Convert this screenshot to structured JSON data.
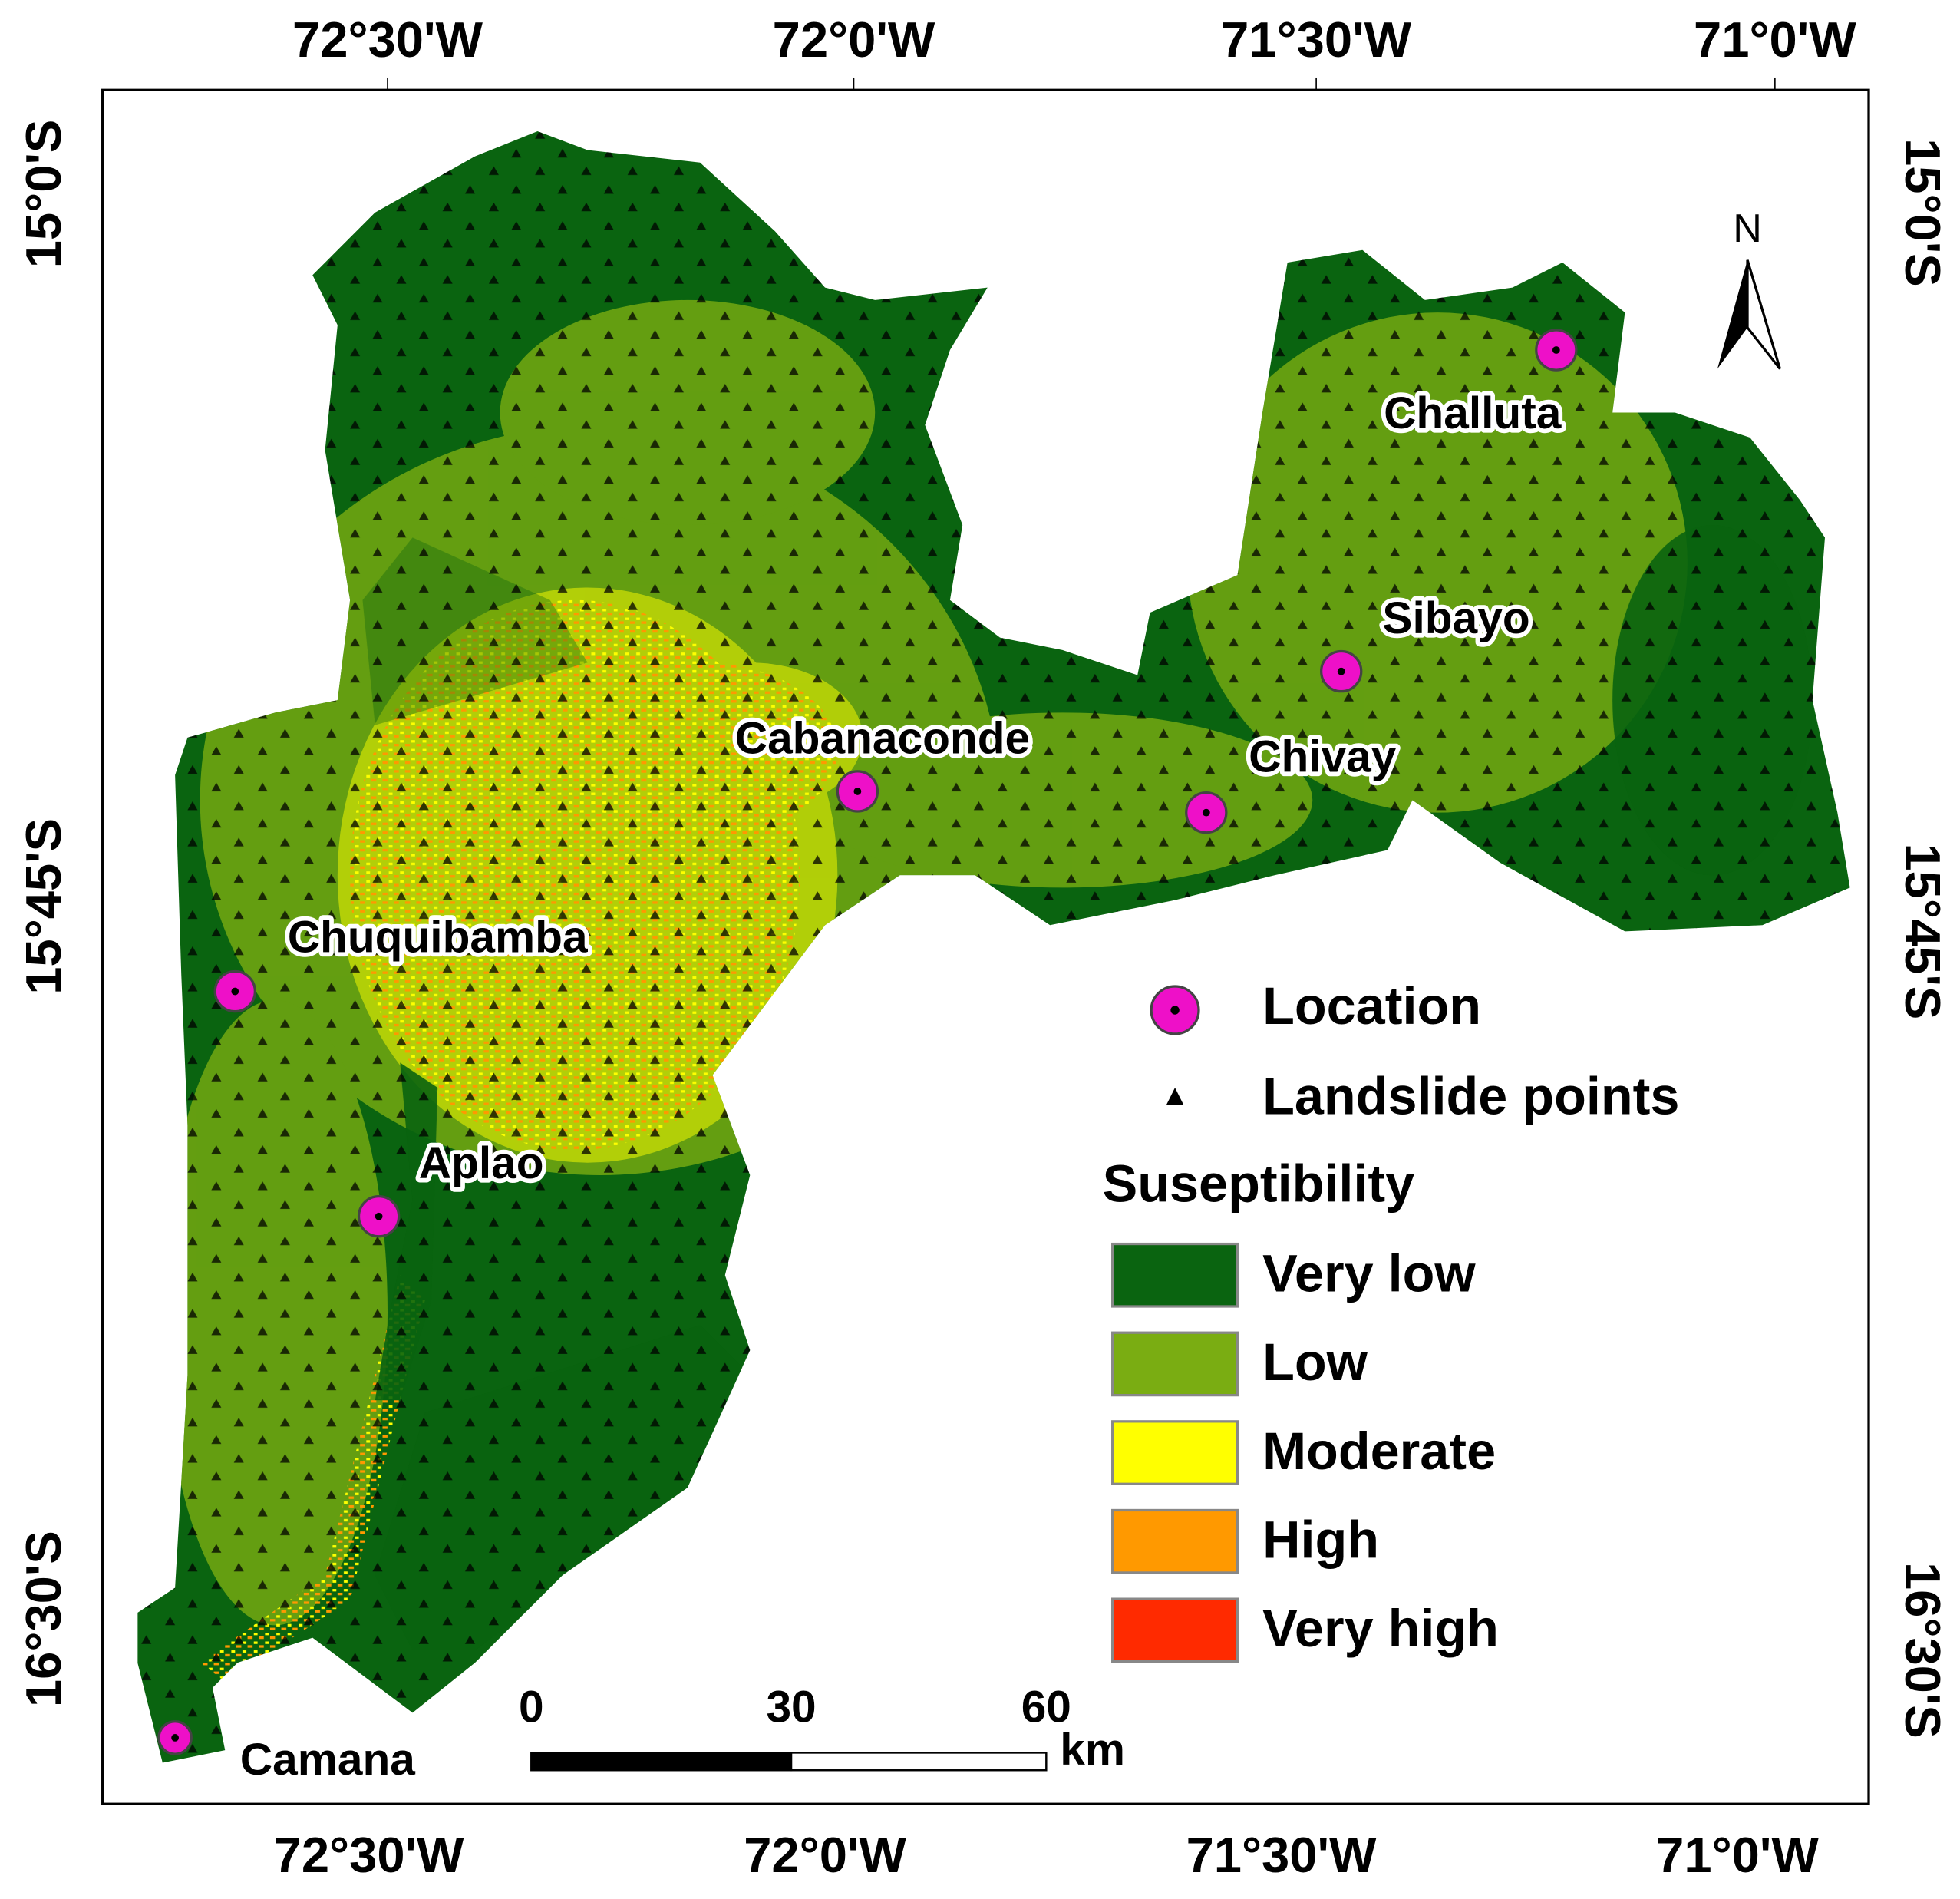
{
  "axes": {
    "top": [
      "72°30'W",
      "72°0'W",
      "71°30'W",
      "71°0'W"
    ],
    "bottom": [
      "72°30'W",
      "72°0'W",
      "71°30'W",
      "71°0'W"
    ],
    "left": [
      "15°0'S",
      "15°45'S",
      "16°30'S"
    ],
    "right": [
      "15°0'S",
      "15°45'S",
      "16°30'S"
    ]
  },
  "north": "N",
  "places": [
    "Challuta",
    "Sibayo",
    "Chivay",
    "Cabanaconde",
    "Chuquibamba",
    "Aplao",
    "Camana"
  ],
  "legend": {
    "location": "Location",
    "landslide": "Landslide points",
    "title": "Suseptibility",
    "classes": [
      {
        "label": "Very low",
        "color": "#0a6410"
      },
      {
        "label": "Low",
        "color": "#7aad12"
      },
      {
        "label": "Moderate",
        "color": "#ffff00"
      },
      {
        "label": "High",
        "color": "#ff9900"
      },
      {
        "label": "Very high",
        "color": "#ff2a00"
      }
    ]
  },
  "scale_bar": {
    "labels": [
      "0",
      "30",
      "60"
    ],
    "unit": "km"
  }
}
